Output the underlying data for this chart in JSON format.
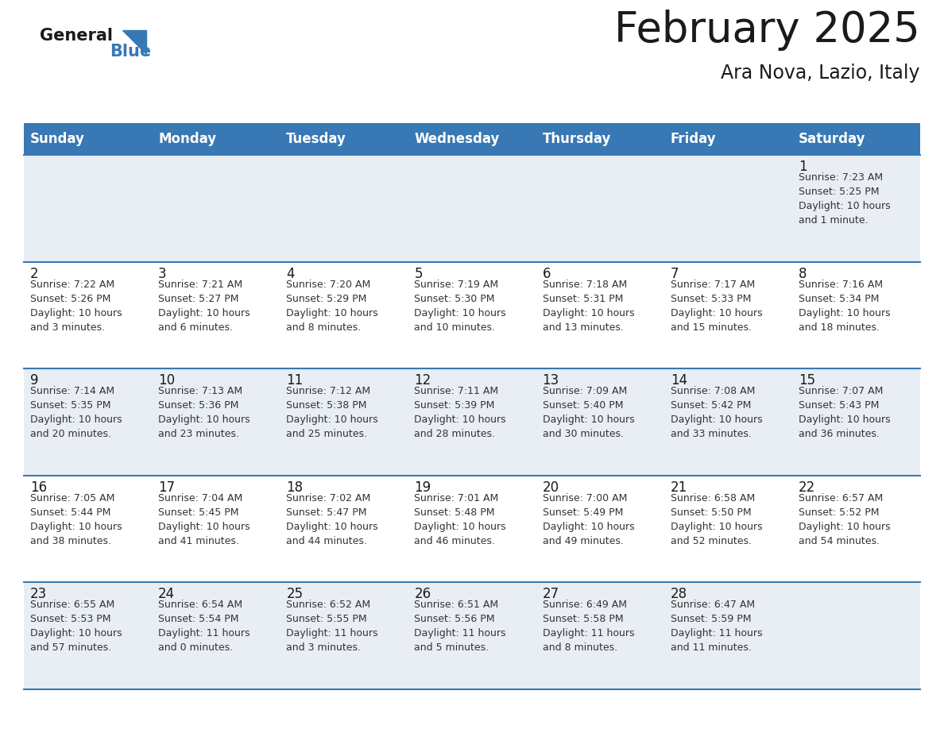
{
  "title": "February 2025",
  "subtitle": "Ara Nova, Lazio, Italy",
  "header_color": "#3878B4",
  "header_text_color": "#FFFFFF",
  "background_color": "#FFFFFF",
  "cell_bg_light": "#E8EEF4",
  "cell_bg_white": "#FFFFFF",
  "border_color": "#3878B4",
  "day_names": [
    "Sunday",
    "Monday",
    "Tuesday",
    "Wednesday",
    "Thursday",
    "Friday",
    "Saturday"
  ],
  "row_bg": [
    "light",
    "white",
    "light",
    "white",
    "light"
  ],
  "weeks": [
    [
      {
        "day": "",
        "info": ""
      },
      {
        "day": "",
        "info": ""
      },
      {
        "day": "",
        "info": ""
      },
      {
        "day": "",
        "info": ""
      },
      {
        "day": "",
        "info": ""
      },
      {
        "day": "",
        "info": ""
      },
      {
        "day": "1",
        "info": "Sunrise: 7:23 AM\nSunset: 5:25 PM\nDaylight: 10 hours\nand 1 minute."
      }
    ],
    [
      {
        "day": "2",
        "info": "Sunrise: 7:22 AM\nSunset: 5:26 PM\nDaylight: 10 hours\nand 3 minutes."
      },
      {
        "day": "3",
        "info": "Sunrise: 7:21 AM\nSunset: 5:27 PM\nDaylight: 10 hours\nand 6 minutes."
      },
      {
        "day": "4",
        "info": "Sunrise: 7:20 AM\nSunset: 5:29 PM\nDaylight: 10 hours\nand 8 minutes."
      },
      {
        "day": "5",
        "info": "Sunrise: 7:19 AM\nSunset: 5:30 PM\nDaylight: 10 hours\nand 10 minutes."
      },
      {
        "day": "6",
        "info": "Sunrise: 7:18 AM\nSunset: 5:31 PM\nDaylight: 10 hours\nand 13 minutes."
      },
      {
        "day": "7",
        "info": "Sunrise: 7:17 AM\nSunset: 5:33 PM\nDaylight: 10 hours\nand 15 minutes."
      },
      {
        "day": "8",
        "info": "Sunrise: 7:16 AM\nSunset: 5:34 PM\nDaylight: 10 hours\nand 18 minutes."
      }
    ],
    [
      {
        "day": "9",
        "info": "Sunrise: 7:14 AM\nSunset: 5:35 PM\nDaylight: 10 hours\nand 20 minutes."
      },
      {
        "day": "10",
        "info": "Sunrise: 7:13 AM\nSunset: 5:36 PM\nDaylight: 10 hours\nand 23 minutes."
      },
      {
        "day": "11",
        "info": "Sunrise: 7:12 AM\nSunset: 5:38 PM\nDaylight: 10 hours\nand 25 minutes."
      },
      {
        "day": "12",
        "info": "Sunrise: 7:11 AM\nSunset: 5:39 PM\nDaylight: 10 hours\nand 28 minutes."
      },
      {
        "day": "13",
        "info": "Sunrise: 7:09 AM\nSunset: 5:40 PM\nDaylight: 10 hours\nand 30 minutes."
      },
      {
        "day": "14",
        "info": "Sunrise: 7:08 AM\nSunset: 5:42 PM\nDaylight: 10 hours\nand 33 minutes."
      },
      {
        "day": "15",
        "info": "Sunrise: 7:07 AM\nSunset: 5:43 PM\nDaylight: 10 hours\nand 36 minutes."
      }
    ],
    [
      {
        "day": "16",
        "info": "Sunrise: 7:05 AM\nSunset: 5:44 PM\nDaylight: 10 hours\nand 38 minutes."
      },
      {
        "day": "17",
        "info": "Sunrise: 7:04 AM\nSunset: 5:45 PM\nDaylight: 10 hours\nand 41 minutes."
      },
      {
        "day": "18",
        "info": "Sunrise: 7:02 AM\nSunset: 5:47 PM\nDaylight: 10 hours\nand 44 minutes."
      },
      {
        "day": "19",
        "info": "Sunrise: 7:01 AM\nSunset: 5:48 PM\nDaylight: 10 hours\nand 46 minutes."
      },
      {
        "day": "20",
        "info": "Sunrise: 7:00 AM\nSunset: 5:49 PM\nDaylight: 10 hours\nand 49 minutes."
      },
      {
        "day": "21",
        "info": "Sunrise: 6:58 AM\nSunset: 5:50 PM\nDaylight: 10 hours\nand 52 minutes."
      },
      {
        "day": "22",
        "info": "Sunrise: 6:57 AM\nSunset: 5:52 PM\nDaylight: 10 hours\nand 54 minutes."
      }
    ],
    [
      {
        "day": "23",
        "info": "Sunrise: 6:55 AM\nSunset: 5:53 PM\nDaylight: 10 hours\nand 57 minutes."
      },
      {
        "day": "24",
        "info": "Sunrise: 6:54 AM\nSunset: 5:54 PM\nDaylight: 11 hours\nand 0 minutes."
      },
      {
        "day": "25",
        "info": "Sunrise: 6:52 AM\nSunset: 5:55 PM\nDaylight: 11 hours\nand 3 minutes."
      },
      {
        "day": "26",
        "info": "Sunrise: 6:51 AM\nSunset: 5:56 PM\nDaylight: 11 hours\nand 5 minutes."
      },
      {
        "day": "27",
        "info": "Sunrise: 6:49 AM\nSunset: 5:58 PM\nDaylight: 11 hours\nand 8 minutes."
      },
      {
        "day": "28",
        "info": "Sunrise: 6:47 AM\nSunset: 5:59 PM\nDaylight: 11 hours\nand 11 minutes."
      },
      {
        "day": "",
        "info": ""
      }
    ]
  ],
  "logo_general_color": "#1A1A1A",
  "logo_blue_color": "#3878B4",
  "title_fontsize": 38,
  "subtitle_fontsize": 17,
  "header_fontsize": 12,
  "day_num_fontsize": 12,
  "info_fontsize": 9
}
